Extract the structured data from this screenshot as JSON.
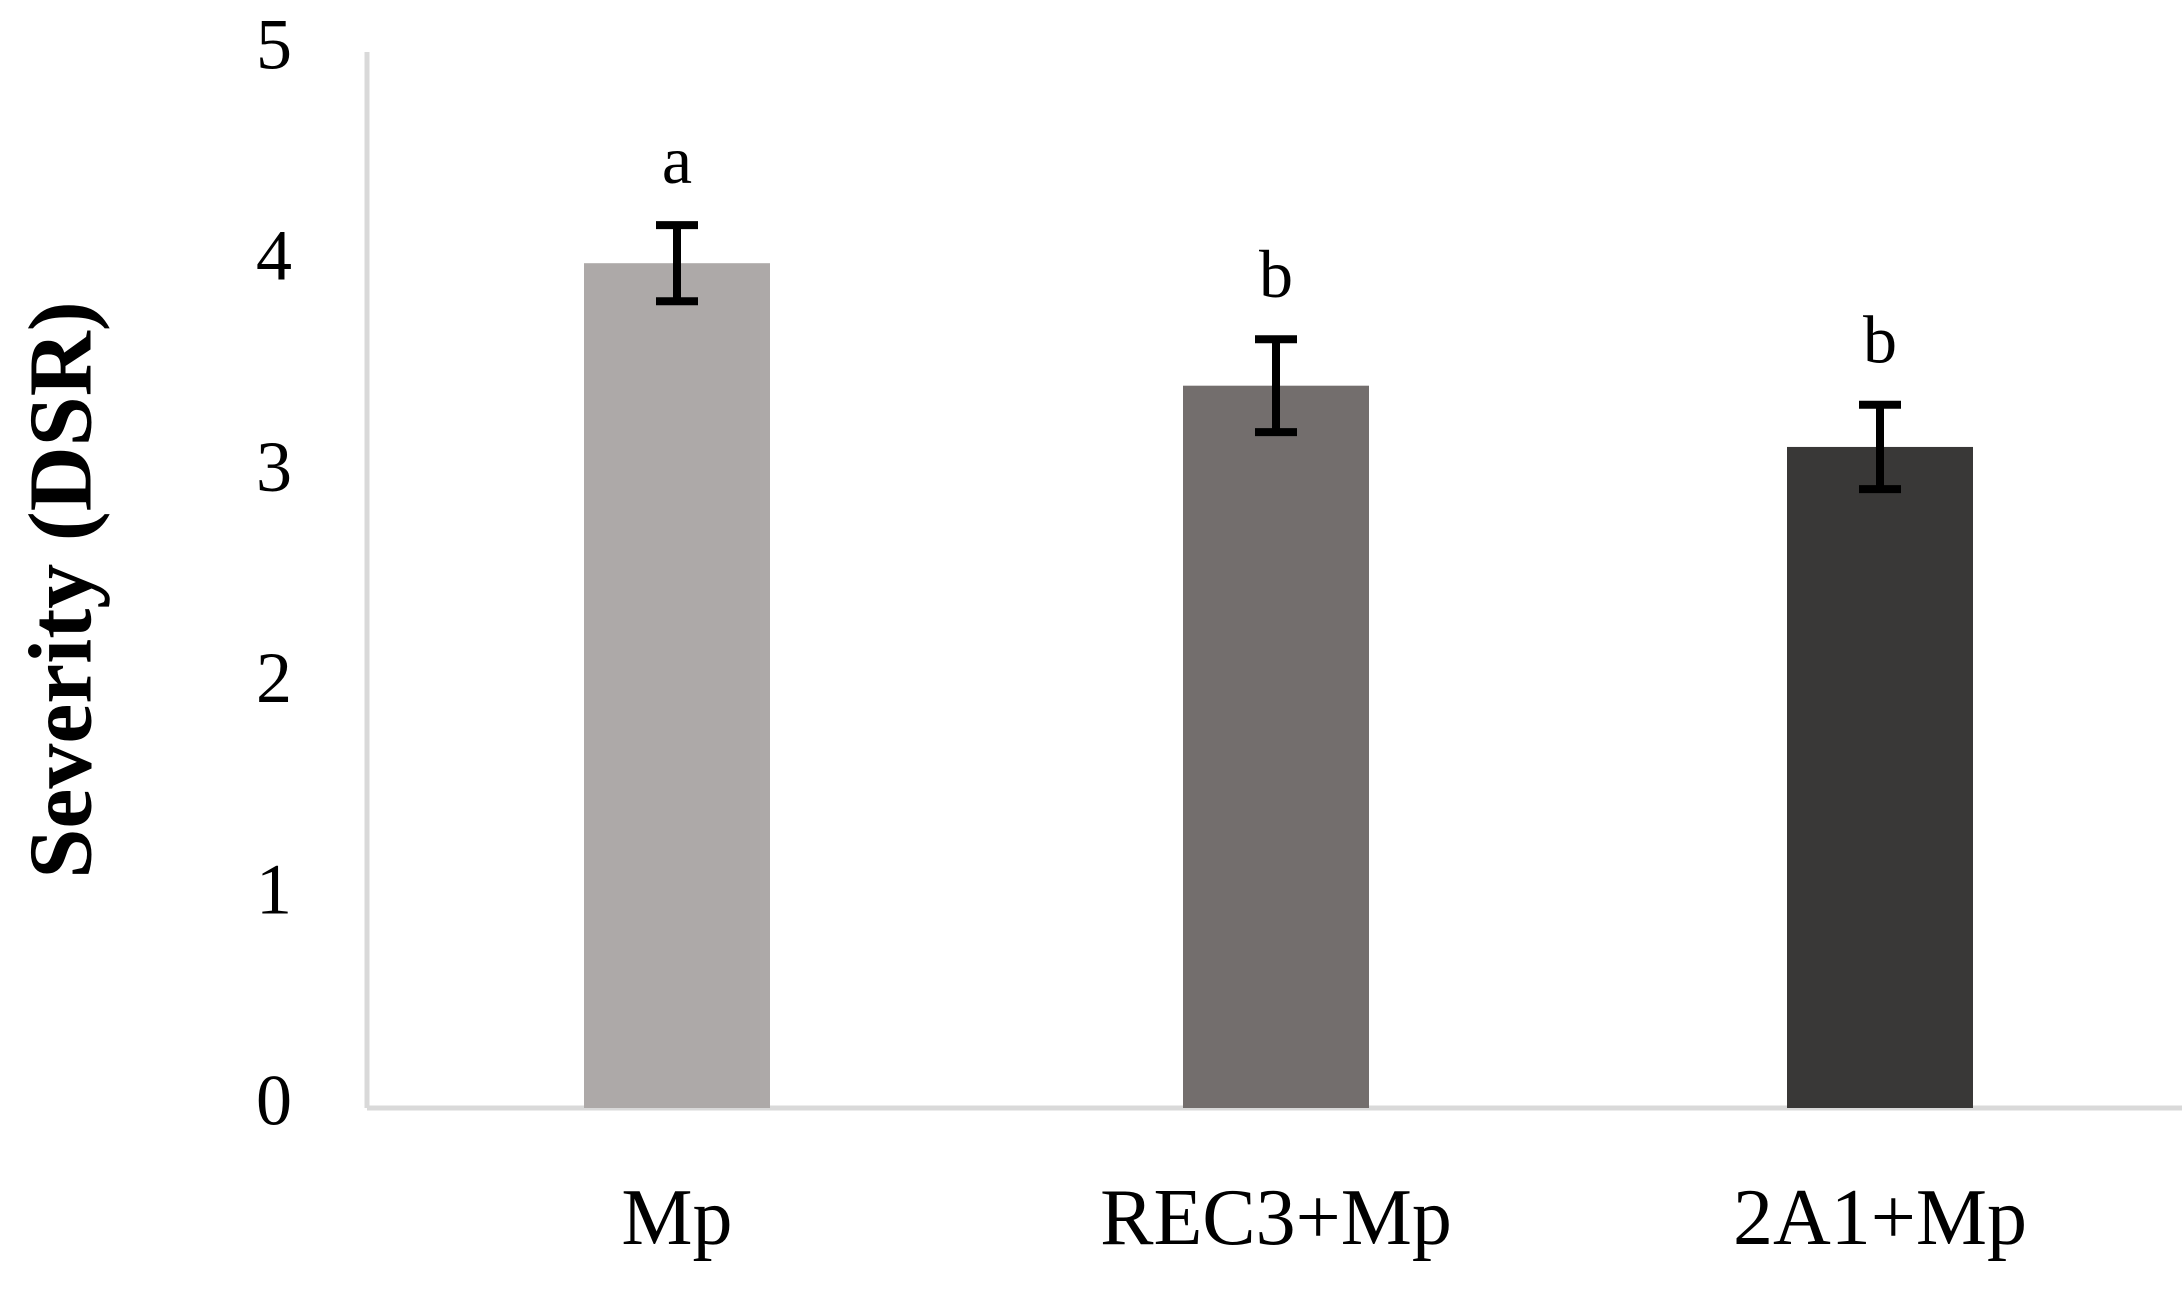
{
  "chart_data": {
    "type": "bar",
    "title": "",
    "xlabel": "",
    "ylabel": "Severity (DSR)",
    "ylim": [
      0,
      5
    ],
    "yticks": [
      "0",
      "1",
      "2",
      "3",
      "4",
      "5"
    ],
    "categories": [
      "Mp",
      "REC3+Mp",
      "2A1+Mp"
    ],
    "values": [
      4.0,
      3.42,
      3.13
    ],
    "error": [
      0.18,
      0.22,
      0.2
    ],
    "significance": [
      "a",
      "b",
      "b"
    ],
    "bar_colors": [
      "#ada9a8",
      "#736e6d",
      "#393837"
    ],
    "axis_color": "#d9d9d9",
    "errorbar_color": "#000000",
    "grid": false,
    "legend": "none"
  }
}
